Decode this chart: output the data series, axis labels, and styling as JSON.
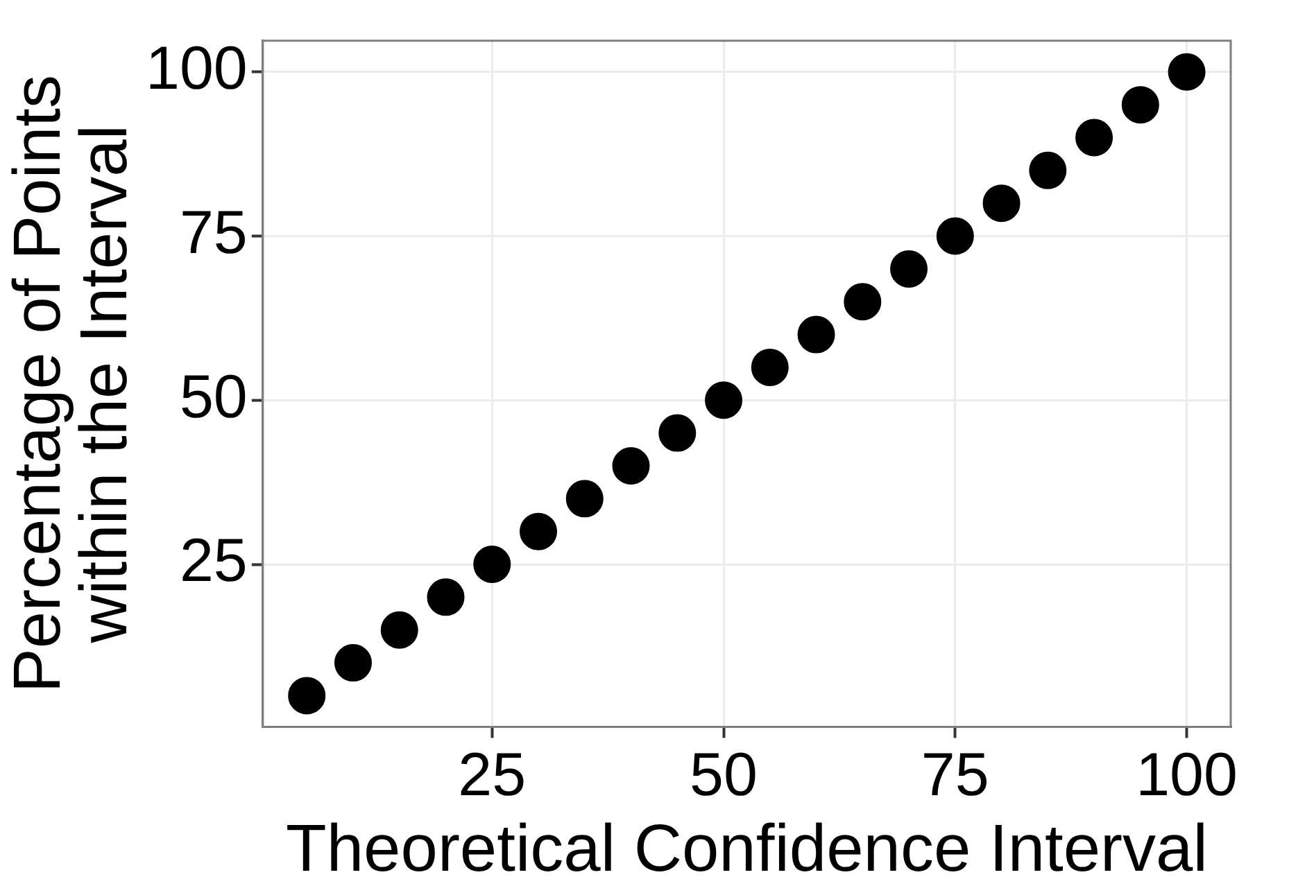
{
  "chart_data": {
    "type": "scatter",
    "xlabel": "Theoretical Confidence Interval",
    "ylabel": "Percentage of Points\nwithin the Interval",
    "x": [
      5,
      10,
      15,
      20,
      25,
      30,
      35,
      40,
      45,
      50,
      55,
      60,
      65,
      70,
      75,
      80,
      85,
      90,
      95,
      100
    ],
    "series": [
      {
        "color": "#000000",
        "values": [
          5,
          10,
          15,
          20,
          25,
          30,
          35,
          40,
          45,
          50,
          55,
          60,
          65,
          70,
          75,
          80,
          85,
          90,
          95,
          100
        ]
      }
    ],
    "xlim": [
      0.25,
      104.75
    ],
    "ylim": [
      0.25,
      104.75
    ],
    "xticks": [
      25,
      50,
      75,
      100
    ],
    "yticks": [
      25,
      50,
      75,
      100
    ],
    "grid": true,
    "legend": false,
    "marker": "circle"
  }
}
